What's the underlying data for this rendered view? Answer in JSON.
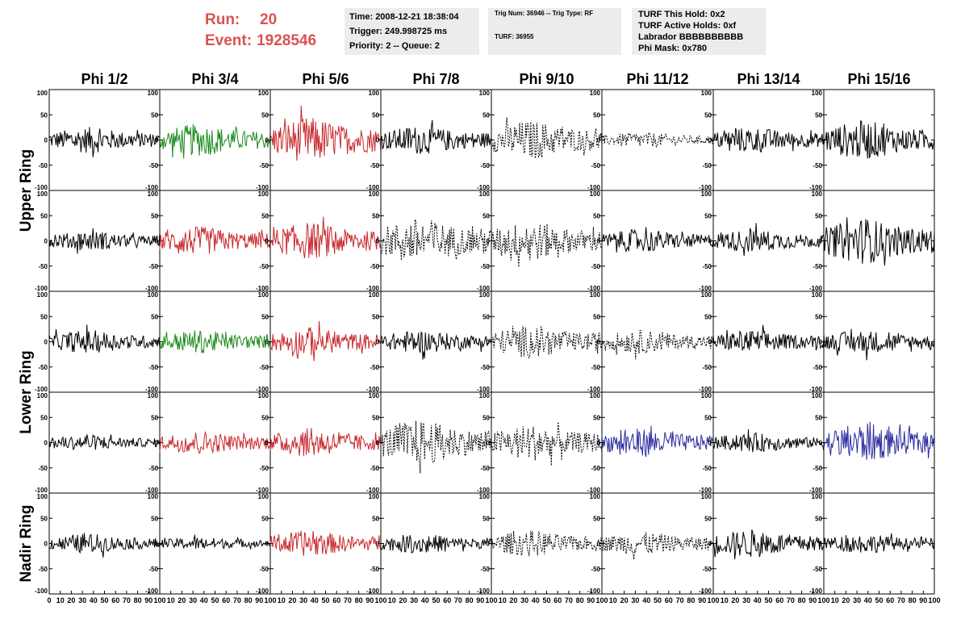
{
  "header": {
    "run_label": "Run:",
    "run_value": "20",
    "event_label": "Event:",
    "event_value": "1928546",
    "box1": [
      "Time: 2008-12-21 18:38:04",
      "Trigger: 249.998725 ms",
      "Priority: 2 -- Queue: 2"
    ],
    "box2": [
      "Trig Num: 36946 -- Trig Type: RF",
      "TURF: 36955"
    ],
    "box3": [
      "TURF This Hold: 0x2",
      "TURF Active Holds: 0xf",
      "Labrador BBBBBBBBBB",
      "Phi Mask: 0x780"
    ]
  },
  "colors": {
    "header_red": "#d9534f",
    "trace_black": "#000000",
    "trace_green": "#1a8a1a",
    "trace_red": "#c8282d",
    "trace_blue": "#2a2aa0",
    "box_bg": "#ececec"
  },
  "chart_data": {
    "type": "line",
    "columns": [
      "Phi 1/2",
      "Phi 3/4",
      "Phi 5/6",
      "Phi 7/8",
      "Phi 9/10",
      "Phi 11/12",
      "Phi 13/14",
      "Phi 15/16"
    ],
    "rows": [
      "Upper Ring",
      "Upper Ring",
      "Lower Ring",
      "Lower Ring",
      "Nadir Ring"
    ],
    "row_labels": [
      "Upper Ring",
      "Lower Ring",
      "Nadir Ring"
    ],
    "ylim": [
      -100,
      100
    ],
    "y_ticks": [
      "100",
      "50",
      "0",
      "-50",
      "-100"
    ],
    "xlim": [
      0,
      100
    ],
    "x_ticks": [
      "0",
      "10",
      "20",
      "30",
      "40",
      "50",
      "60",
      "70",
      "80",
      "90",
      "100"
    ],
    "panel_styles": [
      [
        "black",
        "green",
        "red",
        "black",
        "dashed",
        "dashed",
        "black",
        "black"
      ],
      [
        "black",
        "red",
        "red",
        "dashed",
        "dashed",
        "black",
        "black",
        "black"
      ],
      [
        "black",
        "green",
        "red",
        "black",
        "dashed",
        "dashed",
        "black",
        "black"
      ],
      [
        "black",
        "red",
        "red",
        "dashed",
        "dashed",
        "blue",
        "black",
        "blue"
      ],
      [
        "black",
        "black",
        "red",
        "black",
        "dashed",
        "dashed",
        "black",
        "black"
      ]
    ],
    "panel_amplitudes": [
      [
        20,
        25,
        35,
        22,
        30,
        12,
        20,
        30
      ],
      [
        15,
        22,
        28,
        35,
        30,
        18,
        18,
        35
      ],
      [
        18,
        18,
        22,
        18,
        25,
        18,
        18,
        18
      ],
      [
        12,
        18,
        22,
        35,
        28,
        22,
        15,
        30
      ],
      [
        15,
        10,
        20,
        15,
        20,
        18,
        22,
        15
      ]
    ]
  }
}
